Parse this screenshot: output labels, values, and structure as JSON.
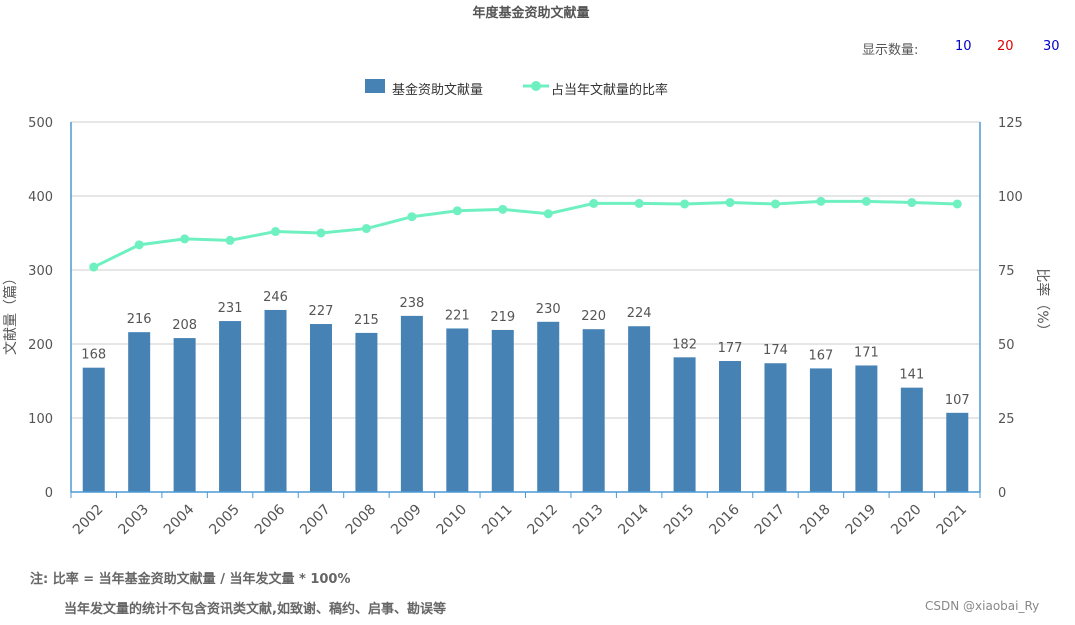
{
  "chart_data": {
    "type": "bar",
    "title": "年度基金资助文献量",
    "categories": [
      "2002",
      "2003",
      "2004",
      "2005",
      "2006",
      "2007",
      "2008",
      "2009",
      "2010",
      "2011",
      "2012",
      "2013",
      "2014",
      "2015",
      "2016",
      "2017",
      "2018",
      "2019",
      "2020",
      "2021"
    ],
    "series": [
      {
        "name": "基金资助文献量",
        "type": "bar",
        "axis": "left",
        "color": "#4682b4",
        "values": [
          168,
          216,
          208,
          231,
          246,
          227,
          215,
          238,
          221,
          219,
          230,
          220,
          224,
          182,
          177,
          174,
          167,
          171,
          141,
          107
        ]
      },
      {
        "name": "占当年文献量的比率",
        "type": "line",
        "axis": "right",
        "color": "#6ff0c1",
        "values": [
          76,
          83.5,
          85.5,
          85,
          88,
          87.5,
          89,
          93,
          95,
          95.5,
          94,
          97.5,
          97.5,
          97.3,
          97.8,
          97.3,
          98.2,
          98.2,
          97.8,
          97.3
        ]
      }
    ],
    "ylabel": "文献量（篇）",
    "y2label": "比率（%）",
    "ylim": [
      0,
      500
    ],
    "y2lim": [
      0,
      125
    ],
    "yticks": [
      "0",
      "100",
      "200",
      "300",
      "400",
      "500"
    ],
    "y2ticks": [
      "0",
      "25",
      "50",
      "75",
      "100",
      "125"
    ],
    "grid": true,
    "legend_position": "top-center"
  },
  "display_count": {
    "label": "显示数量:",
    "options": [
      {
        "label": "10",
        "color": "#0000cc"
      },
      {
        "label": "20",
        "color": "#dd0000"
      },
      {
        "label": "30",
        "color": "#0000cc"
      }
    ]
  },
  "notes": {
    "line1": "注:  比率 = 当年基金资助文献量 / 当年发文量 * 100%",
    "line2": "当年发文量的统计不包含资讯类文献,如致谢、稿约、启事、勘误等"
  },
  "watermark": "CSDN @xiaobai_Ry"
}
